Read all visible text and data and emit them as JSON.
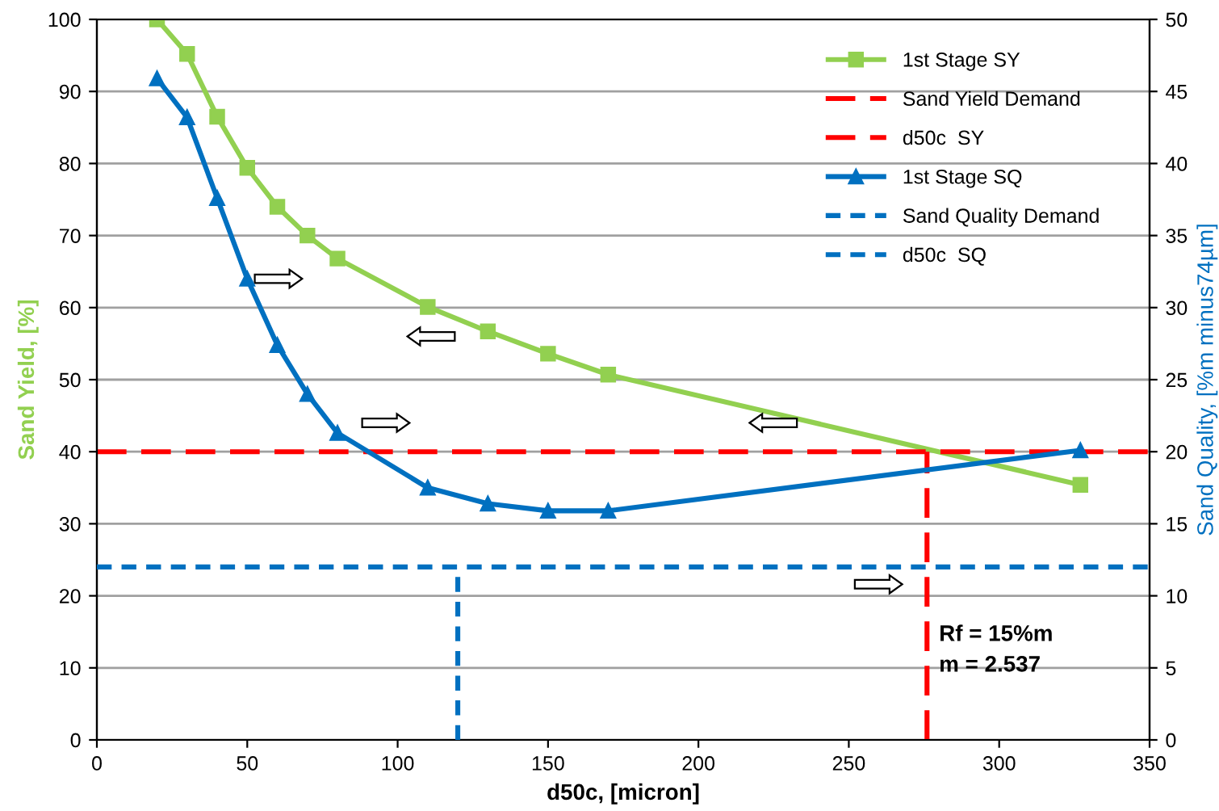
{
  "chart_data": {
    "type": "line",
    "xlabel": "d50c, [micron]",
    "ylabel": "Sand Yield, [%]",
    "y2label": "Sand Quality, [%m minus74µm]",
    "xlim": [
      0,
      350
    ],
    "xticks": [
      0,
      50,
      100,
      150,
      200,
      250,
      300,
      350
    ],
    "ylim": [
      0,
      100
    ],
    "yticks": [
      0,
      10,
      20,
      30,
      40,
      50,
      60,
      70,
      80,
      90,
      100
    ],
    "y2lim": [
      0,
      50
    ],
    "y2ticks": [
      0,
      5,
      10,
      15,
      20,
      25,
      30,
      35,
      40,
      45,
      50
    ],
    "grid": "y",
    "legend": "top right",
    "series": [
      {
        "name": "1st Stage SY",
        "color": "#92d050",
        "marker": "square",
        "line_style": "solid",
        "x": [
          20,
          30,
          40,
          50,
          60,
          70,
          80,
          110,
          130,
          150,
          170,
          327
        ],
        "values": [
          100,
          95.2,
          86.5,
          79.4,
          74,
          70,
          66.8,
          60.1,
          56.7,
          53.6,
          50.7,
          35.4
        ]
      },
      {
        "name": "Sand Yield Demand",
        "color": "#ff0000",
        "marker": "none",
        "line_style": "dashed",
        "x": [
          0,
          350
        ],
        "values": [
          40,
          40
        ]
      },
      {
        "name": "d50c  SY",
        "color": "#ff0000",
        "marker": "none",
        "line_style": "dashed",
        "x": [
          276,
          276
        ],
        "values": [
          0,
          40
        ]
      },
      {
        "name": "1st Stage SQ",
        "color": "#0070c0",
        "marker": "triangle",
        "line_style": "solid",
        "axis": "y2",
        "x": [
          20,
          30,
          40,
          50,
          60,
          70,
          80,
          110,
          130,
          150,
          170,
          327
        ],
        "values": [
          45.9,
          43.2,
          37.6,
          32,
          27.4,
          24,
          21.3,
          17.5,
          16.4,
          15.9,
          15.9,
          20.1
        ]
      },
      {
        "name": "Sand Quality Demand",
        "color": "#0070c0",
        "marker": "none",
        "line_style": "dotted",
        "axis": "y2",
        "x": [
          0,
          350
        ],
        "values": [
          12,
          12
        ]
      },
      {
        "name": "d50c  SQ",
        "color": "#0070c0",
        "marker": "none",
        "line_style": "dotted",
        "axis": "y2",
        "x": [
          120,
          120
        ],
        "values": [
          0,
          12
        ]
      }
    ],
    "annotations": [
      "Rf = 15%m\nm = 2.537"
    ]
  }
}
